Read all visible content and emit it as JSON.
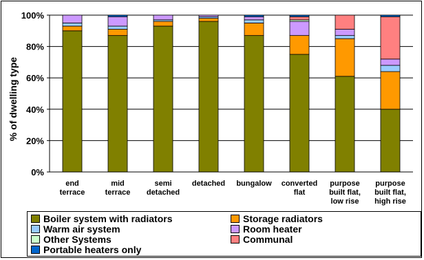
{
  "chart_data": {
    "type": "bar",
    "stacked": true,
    "ylabel": "% of dwelling type",
    "ylim": [
      0,
      100
    ],
    "yticks": [
      "0%",
      "20%",
      "40%",
      "60%",
      "80%",
      "100%"
    ],
    "grid": true,
    "legend_position": "bottom",
    "categories": [
      [
        "end",
        "terrace"
      ],
      [
        "mid",
        "terrace"
      ],
      [
        "semi",
        "detached"
      ],
      [
        "detached"
      ],
      [
        "bungalow"
      ],
      [
        "converted",
        "flat"
      ],
      [
        "purpose",
        "built flat,",
        "low rise"
      ],
      [
        "purpose",
        "built flat,",
        "high rise"
      ]
    ],
    "series": [
      {
        "name": "Boiler system with radiators",
        "color": "#808000",
        "values": [
          90,
          87,
          93,
          96,
          87,
          75,
          61,
          40
        ]
      },
      {
        "name": "Storage radiators",
        "color": "#FF9900",
        "values": [
          3,
          4,
          3,
          2,
          8,
          12,
          24,
          24
        ]
      },
      {
        "name": "Warm air system",
        "color": "#99CCFF",
        "values": [
          2,
          2,
          1,
          1,
          2,
          0,
          2,
          4
        ]
      },
      {
        "name": "Room heater",
        "color": "#CC99FF",
        "values": [
          5,
          6,
          3,
          1,
          2,
          9,
          4,
          4
        ]
      },
      {
        "name": "Other Systems",
        "color": "#CCFFCC",
        "values": [
          0,
          0,
          0,
          0,
          0,
          1,
          0,
          0
        ]
      },
      {
        "name": "Communal",
        "color": "#FF8080",
        "values": [
          0,
          0,
          0,
          0,
          0,
          2,
          9,
          27
        ]
      },
      {
        "name": "Portable heaters only",
        "color": "#0066CC",
        "values": [
          0,
          1,
          0,
          0,
          1,
          1,
          0,
          1
        ]
      }
    ]
  }
}
